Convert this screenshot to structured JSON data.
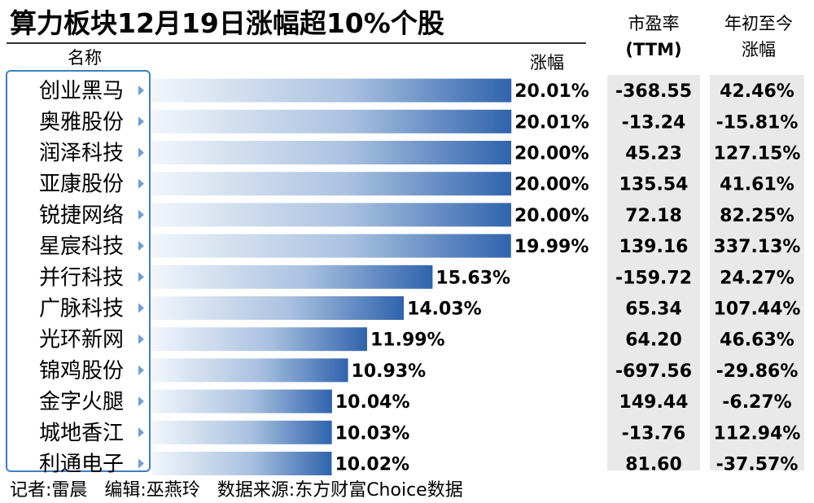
{
  "chart_data": {
    "type": "bar",
    "orientation": "horizontal",
    "title": "算力板块12月19日涨幅超10%个股",
    "column_headers": {
      "name": "名称",
      "change": "涨幅",
      "pe": [
        "市盈率",
        "(TTM)"
      ],
      "ytd": [
        "年初至今",
        "涨幅"
      ]
    },
    "categories": [
      "创业黑马",
      "奥雅股份",
      "润泽科技",
      "亚康股份",
      "锐捷网络",
      "星宸科技",
      "并行科技",
      "广脉科技",
      "光环新网",
      "锦鸡股份",
      "金字火腿",
      "城地香江",
      "利通电子"
    ],
    "values": [
      20.01,
      20.01,
      20.0,
      20.0,
      20.0,
      19.99,
      15.63,
      14.03,
      11.99,
      10.93,
      10.04,
      10.03,
      10.02
    ],
    "value_labels": [
      "20.01%",
      "20.01%",
      "20.00%",
      "20.00%",
      "20.00%",
      "19.99%",
      "15.63%",
      "14.03%",
      "11.99%",
      "10.93%",
      "10.04%",
      "10.03%",
      "10.02%"
    ],
    "pe_ttm": [
      "-368.55",
      "-13.24",
      "45.23",
      "135.54",
      "72.18",
      "139.16",
      "-159.72",
      "65.34",
      "64.20",
      "-697.56",
      "149.44",
      "-13.76",
      "81.60"
    ],
    "ytd_change": [
      "42.46%",
      "-15.81%",
      "127.15%",
      "41.61%",
      "82.25%",
      "337.13%",
      "24.27%",
      "107.44%",
      "46.63%",
      "-29.86%",
      "-6.27%",
      "112.94%",
      "-37.57%"
    ],
    "unit": "%",
    "colors": {
      "bar_light": "#f2f6fb",
      "bar_mid": "#a9c1e0",
      "bar_dark": "#2f63ad",
      "arrow": "#6f9fd6",
      "frame": "#3d7fc6",
      "panel": "#e9e9e9"
    }
  },
  "footer": "记者:雷晨   编辑:巫燕玲   数据来源:东方财富Choice数据"
}
